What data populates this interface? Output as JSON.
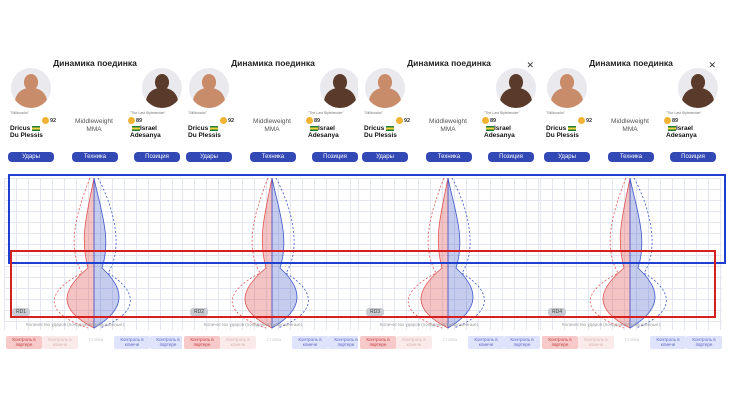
{
  "panels": [
    {
      "title": "Динамика поединка",
      "left_fighter": {
        "nick": "\"Stillknocks\"",
        "rating": "92",
        "name_line1": "Dricus",
        "name_line2": "Du Plessis"
      },
      "right_fighter": {
        "nick": "\"The Last Stylebender\"",
        "rating": "89",
        "name_line1": "Israel",
        "name_line2": "Adesanya"
      },
      "weight_class": "Middleweight",
      "sport": "MMA",
      "tabs": [
        "Удары",
        "Техника",
        "Позиция"
      ],
      "round_label": "RD1",
      "x_label": "Количество ударов (попадания/выброшенные)",
      "legend": [
        "Контроль в партере",
        "Контроль в клинче",
        "Стойка",
        "Контроль в клинче",
        "Контроль в партере"
      ],
      "close": ""
    },
    {
      "title": "Динамика поединка",
      "left_fighter": {
        "nick": "\"Stillknocks\"",
        "rating": "92",
        "name_line1": "Dricus",
        "name_line2": "Du Plessis"
      },
      "right_fighter": {
        "nick": "\"The Last Stylebender\"",
        "rating": "89",
        "name_line1": "Israel",
        "name_line2": "Adesanya"
      },
      "weight_class": "Middleweight",
      "sport": "MMA",
      "tabs": [
        "Удары",
        "Техника",
        "Позиция"
      ],
      "round_label": "RD2",
      "x_label": "Количество ударов (попадания/выброшенные)",
      "legend": [
        "Контроль в партере",
        "Контроль в клинче",
        "Стойка",
        "Контроль в клинче",
        "Контроль в партере"
      ],
      "close": ""
    },
    {
      "title": "Динамика поединка",
      "left_fighter": {
        "nick": "\"Stillknocks\"",
        "rating": "92",
        "name_line1": "Dricus",
        "name_line2": "Du Plessis"
      },
      "right_fighter": {
        "nick": "\"The Last Stylebender\"",
        "rating": "89",
        "name_line1": "Israel",
        "name_line2": "Adesanya"
      },
      "weight_class": "Middleweight",
      "sport": "MMA",
      "tabs": [
        "Удары",
        "Техника",
        "Позиция"
      ],
      "round_label": "RD3",
      "x_label": "Количество ударов (попадания/выброшенные)",
      "legend": [
        "Контроль в партере",
        "Контроль в клинче",
        "Стойка",
        "Контроль в клинче",
        "Контроль в партере"
      ],
      "close": "✕"
    },
    {
      "title": "Динамика поединка",
      "left_fighter": {
        "nick": "\"Stillknocks\"",
        "rating": "92",
        "name_line1": "Dricus",
        "name_line2": "Du Plessis"
      },
      "right_fighter": {
        "nick": "\"The Last Stylebender\"",
        "rating": "89",
        "name_line1": "Israel",
        "name_line2": "Adesanya"
      },
      "weight_class": "Middleweight",
      "sport": "MMA",
      "tabs": [
        "Удары",
        "Техника",
        "Позиция"
      ],
      "round_label": "RD4",
      "x_label": "Количество ударов (попадания/выброшенные)",
      "legend": [
        "Контроль в партере",
        "Контроль в клинче",
        "Стойка",
        "Контроль в клинче",
        "Контроль в партере"
      ],
      "close": "✕"
    }
  ],
  "colors": {
    "tab": "#3248b5",
    "fighter_red": "#e05555",
    "fighter_blue": "#3f57c8",
    "frame_blue": "#1f3fd0",
    "frame_red": "#d61f1f"
  }
}
